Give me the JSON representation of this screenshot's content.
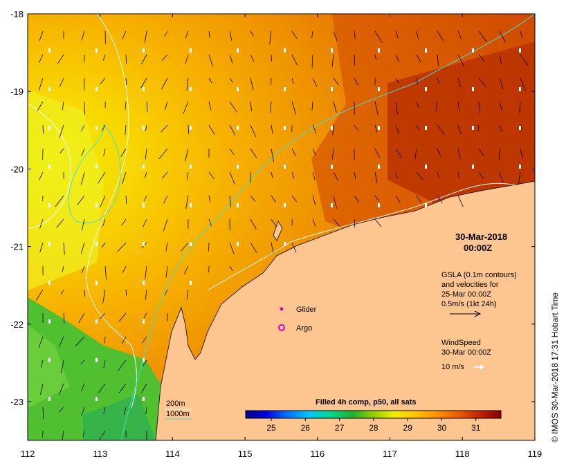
{
  "map": {
    "x_ticks": [
      "112",
      "113",
      "114",
      "115",
      "116",
      "117",
      "118",
      "119"
    ],
    "y_ticks": [
      "-18",
      "-19",
      "-20",
      "-21",
      "-22",
      "-23"
    ],
    "lon_range": [
      112,
      119
    ],
    "lat_range": [
      -23.5,
      -18
    ]
  },
  "annotations": {
    "date": "30-Mar-2018",
    "time": "00:00Z",
    "gsla_line1": "GSLA (0.1m contours)",
    "gsla_line2": "and velocities for",
    "gsla_line3": "25-Mar 00:00Z",
    "gsla_line4": "0.5m/s (1kt 24h)",
    "wind_line1": "WindSpeed",
    "wind_line2": "30-Mar 00:00Z",
    "wind_scale": "10 m/s"
  },
  "legend": {
    "glider": "Glider",
    "argo": "Argo",
    "depth_200": "200m",
    "depth_1000": "1000m",
    "colors": {
      "glider": "#cc00cc",
      "argo": "#cc00cc",
      "depth_200": "#ffffff",
      "depth_1000": "#40e0d0"
    }
  },
  "colorbar": {
    "title": "Filled 4h comp, p50, all sats",
    "ticks": [
      "25",
      "26",
      "27",
      "28",
      "29",
      "30",
      "31"
    ],
    "colors": [
      "#00008b",
      "#0000ff",
      "#0080ff",
      "#00c8ff",
      "#00e0a0",
      "#20c040",
      "#80d000",
      "#e8e800",
      "#ffc000",
      "#ff9000",
      "#e05000",
      "#b01000",
      "#800000"
    ]
  },
  "side_text": "© IMOS 30-Mar-2018 17:31 Hobart Time"
}
